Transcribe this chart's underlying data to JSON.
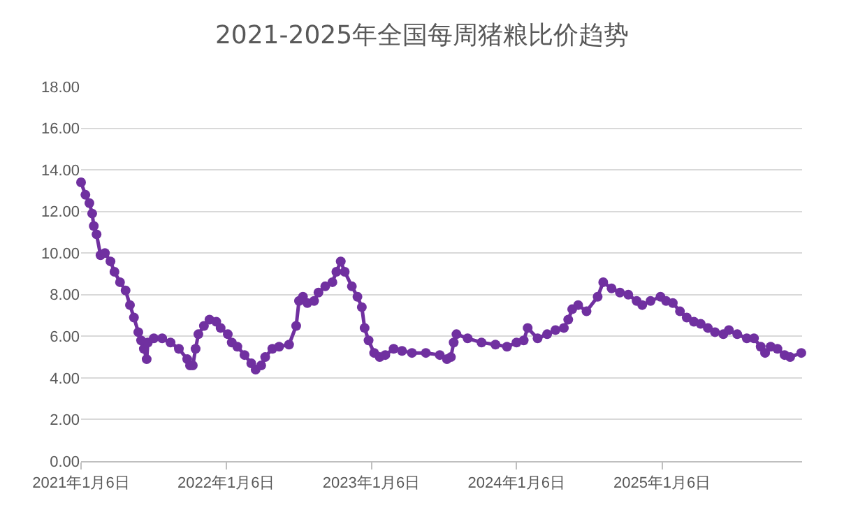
{
  "chart_data": {
    "type": "line",
    "title": "2021-2025年全国每周猪粮比价趋势",
    "x": [
      "2021-01-06",
      "2021-01-17",
      "2021-01-27",
      "2021-02-03",
      "2021-02-07",
      "2021-02-14",
      "2021-02-24",
      "2021-03-07",
      "2021-03-21",
      "2021-03-31",
      "2021-04-14",
      "2021-04-28",
      "2021-05-09",
      "2021-05-19",
      "2021-05-30",
      "2021-06-06",
      "2021-06-13",
      "2021-06-20",
      "2021-06-23",
      "2021-07-08",
      "2021-07-29",
      "2021-08-19",
      "2021-09-09",
      "2021-09-30",
      "2021-10-07",
      "2021-10-14",
      "2021-10-21",
      "2021-10-28",
      "2021-11-11",
      "2021-11-25",
      "2021-12-12",
      "2021-12-23",
      "2022-01-10",
      "2022-01-20",
      "2022-02-03",
      "2022-02-21",
      "2022-03-10",
      "2022-03-21",
      "2022-04-04",
      "2022-04-14",
      "2022-05-02",
      "2022-05-19",
      "2022-06-13",
      "2022-07-01",
      "2022-07-08",
      "2022-07-18",
      "2022-07-29",
      "2022-08-15",
      "2022-08-26",
      "2022-09-12",
      "2022-09-30",
      "2022-10-10",
      "2022-10-21",
      "2022-10-31",
      "2022-11-18",
      "2022-12-02",
      "2022-12-13",
      "2022-12-20",
      "2022-12-30",
      "2023-01-13",
      "2023-01-27",
      "2023-02-10",
      "2023-03-03",
      "2023-03-24",
      "2023-04-18",
      "2023-05-23",
      "2023-06-27",
      "2023-07-15",
      "2023-07-25",
      "2023-08-01",
      "2023-08-08",
      "2023-09-05",
      "2023-10-10",
      "2023-11-14",
      "2023-12-13",
      "2024-01-06",
      "2024-01-24",
      "2024-02-03",
      "2024-02-28",
      "2024-03-23",
      "2024-04-13",
      "2024-05-04",
      "2024-05-15",
      "2024-05-25",
      "2024-06-09",
      "2024-06-30",
      "2024-07-28",
      "2024-08-11",
      "2024-09-01",
      "2024-09-22",
      "2024-10-13",
      "2024-11-03",
      "2024-11-17",
      "2024-12-08",
      "2025-01-02",
      "2025-01-16",
      "2025-02-02",
      "2025-02-20",
      "2025-03-09",
      "2025-03-27",
      "2025-04-13",
      "2025-05-01",
      "2025-05-19",
      "2025-06-09",
      "2025-06-23",
      "2025-07-14",
      "2025-08-07",
      "2025-08-25",
      "2025-09-11",
      "2025-09-22",
      "2025-10-06",
      "2025-10-23",
      "2025-11-10",
      "2025-11-24",
      "2025-12-22"
    ],
    "series": [
      {
        "color": "#7030a0",
        "values": [
          13.4,
          12.8,
          12.4,
          11.9,
          11.3,
          10.9,
          9.9,
          10.0,
          9.6,
          9.1,
          8.6,
          8.2,
          7.5,
          6.9,
          6.2,
          5.8,
          5.4,
          4.9,
          5.7,
          5.9,
          5.9,
          5.7,
          5.4,
          4.9,
          4.6,
          4.6,
          5.4,
          6.1,
          6.5,
          6.8,
          6.7,
          6.4,
          6.1,
          5.7,
          5.5,
          5.1,
          4.7,
          4.4,
          4.6,
          5.0,
          5.4,
          5.5,
          5.6,
          6.5,
          7.7,
          7.9,
          7.6,
          7.7,
          8.1,
          8.4,
          8.6,
          9.1,
          9.6,
          9.1,
          8.4,
          7.9,
          7.4,
          6.4,
          5.8,
          5.2,
          5.0,
          5.1,
          5.4,
          5.3,
          5.2,
          5.2,
          5.1,
          4.9,
          5.0,
          5.7,
          6.1,
          5.9,
          5.7,
          5.6,
          5.5,
          5.7,
          5.8,
          6.4,
          5.9,
          6.1,
          6.3,
          6.4,
          6.8,
          7.3,
          7.5,
          7.2,
          7.9,
          8.6,
          8.3,
          8.1,
          8.0,
          7.7,
          7.5,
          7.7,
          7.9,
          7.7,
          7.6,
          7.2,
          6.9,
          6.7,
          6.6,
          6.4,
          6.2,
          6.1,
          6.3,
          6.1,
          5.9,
          5.9,
          5.5,
          5.2,
          5.5,
          5.4,
          5.1,
          5.0,
          5.2
        ]
      }
    ],
    "xlim": [
      "2021-01-06",
      "2025-12-24"
    ],
    "xticks": [
      {
        "value": "2021-01-06",
        "label": "2021年1月6日"
      },
      {
        "value": "2022-01-06",
        "label": "2022年1月6日"
      },
      {
        "value": "2023-01-06",
        "label": "2023年1月6日"
      },
      {
        "value": "2024-01-06",
        "label": "2024年1月6日"
      },
      {
        "value": "2025-01-06",
        "label": "2025年1月6日"
      }
    ],
    "ylim": [
      0,
      18
    ],
    "yticks": [
      {
        "value": 0,
        "label": "0.00"
      },
      {
        "value": 2,
        "label": "2.00"
      },
      {
        "value": 4,
        "label": "4.00"
      },
      {
        "value": 6,
        "label": "6.00"
      },
      {
        "value": 8,
        "label": "8.00"
      },
      {
        "value": 10,
        "label": "10.00"
      },
      {
        "value": 12,
        "label": "12.00"
      },
      {
        "value": 14,
        "label": "14.00"
      },
      {
        "value": 16,
        "label": "16.00"
      },
      {
        "value": 18,
        "label": "18.00"
      }
    ],
    "grid": "y",
    "marker": "circle",
    "line_style": "solid"
  }
}
